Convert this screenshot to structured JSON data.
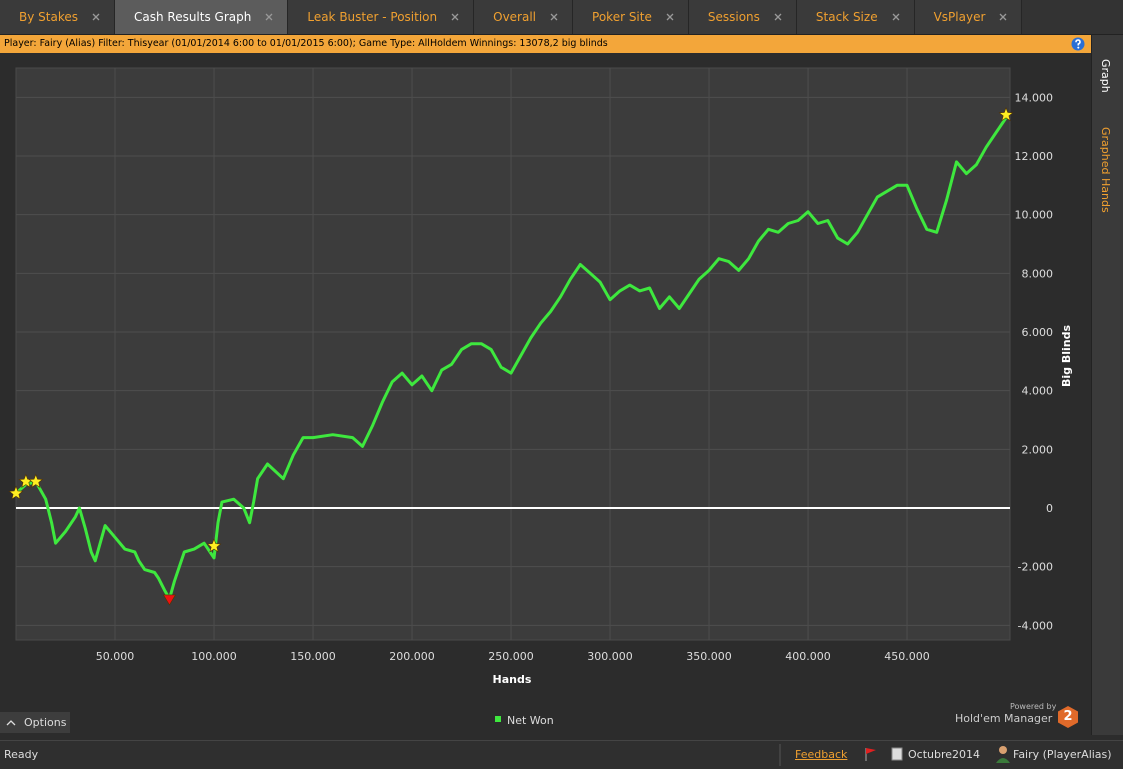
{
  "tabs": [
    "By Stakes",
    "Cash Results Graph",
    "Leak Buster - Position",
    "Overall",
    "Poker Site",
    "Sessions",
    "Stack Size",
    "VsPlayer"
  ],
  "info_bar": "Player: Fairy (Alias) Filter: Thisyear (01/01/2014 6:00 to 01/01/2015 6:00); Game Type: AllHoldem Winnings: 13078,2 big blinds",
  "side_tabs": [
    "Graph",
    "Graphed Hands"
  ],
  "chart_data": {
    "type": "line",
    "x_label": "Hands",
    "y_label": "Big Blinds",
    "grid": true,
    "xlim": [
      0,
      502000
    ],
    "ylim": [
      -4500,
      15000
    ],
    "xticks": [
      {
        "value": 50000,
        "label": "50.000"
      },
      {
        "value": 100000,
        "label": "100.000"
      },
      {
        "value": 150000,
        "label": "150.000"
      },
      {
        "value": 200000,
        "label": "200.000"
      },
      {
        "value": 250000,
        "label": "250.000"
      },
      {
        "value": 300000,
        "label": "300.000"
      },
      {
        "value": 350000,
        "label": "350.000"
      },
      {
        "value": 400000,
        "label": "400.000"
      },
      {
        "value": 450000,
        "label": "450.000"
      }
    ],
    "yticks": [
      {
        "value": -4000,
        "label": "-4.000"
      },
      {
        "value": -2000,
        "label": "-2.000"
      },
      0,
      {
        "value": 2000,
        "label": "2.000"
      },
      {
        "value": 4000,
        "label": "4.000"
      },
      {
        "value": 6000,
        "label": "6.000"
      },
      {
        "value": 8000,
        "label": "8.000"
      },
      {
        "value": 10000,
        "label": "10.000"
      },
      {
        "value": 12000,
        "label": "12.000"
      },
      {
        "value": 14000,
        "label": "14.000"
      }
    ],
    "x": [
      0,
      5000,
      10000,
      15000,
      18000,
      20000,
      25000,
      30000,
      32000,
      35000,
      38000,
      40000,
      45000,
      50000,
      55000,
      60000,
      62000,
      65000,
      70000,
      72000,
      75000,
      77500,
      80000,
      85000,
      90000,
      95000,
      100000,
      102000,
      104000,
      110000,
      115000,
      118000,
      120000,
      122000,
      127000,
      135000,
      140000,
      145000,
      150000,
      160000,
      170000,
      175000,
      180000,
      185000,
      190000,
      195000,
      200000,
      205000,
      210000,
      215000,
      220000,
      225000,
      230000,
      235000,
      240000,
      245000,
      250000,
      255000,
      260000,
      265000,
      270000,
      275000,
      280000,
      285000,
      290000,
      295000,
      300000,
      305000,
      310000,
      315000,
      320000,
      325000,
      330000,
      335000,
      340000,
      345000,
      350000,
      355000,
      360000,
      365000,
      370000,
      375000,
      380000,
      385000,
      390000,
      395000,
      400000,
      405000,
      410000,
      415000,
      420000,
      425000,
      430000,
      435000,
      440000,
      445000,
      450000,
      455000,
      460000,
      465000,
      470000,
      475000,
      480000,
      485000,
      490000,
      495000,
      500000
    ],
    "series": [
      {
        "name": "Net Won",
        "color": "#3ee83e",
        "values": [
          500,
          800,
          900,
          300,
          -500,
          -1200,
          -800,
          -300,
          0,
          -700,
          -1500,
          -1800,
          -600,
          -1000,
          -1400,
          -1500,
          -1800,
          -2100,
          -2200,
          -2400,
          -2800,
          -3100,
          -2500,
          -1500,
          -1400,
          -1200,
          -1700,
          -500,
          200,
          300,
          0,
          -500,
          200,
          1000,
          1500,
          1000,
          1800,
          2400,
          2400,
          2500,
          2400,
          2100,
          2800,
          3600,
          4300,
          4600,
          4200,
          4500,
          4000,
          4700,
          4900,
          5400,
          5600,
          5600,
          5400,
          4800,
          4600,
          5200,
          5800,
          6300,
          6700,
          7200,
          7800,
          8300,
          8000,
          7700,
          7100,
          7400,
          7600,
          7400,
          7500,
          6800,
          7200,
          6800,
          7300,
          7800,
          8100,
          8500,
          8400,
          8100,
          8500,
          9100,
          9500,
          9400,
          9700,
          9800,
          10100,
          9700,
          9800,
          9200,
          9000,
          9400,
          10000,
          10600,
          10800,
          11000,
          11000,
          10200,
          9500,
          9400,
          10500,
          11800,
          11400,
          11700,
          12300,
          12800,
          13300
        ]
      }
    ],
    "markers": [
      {
        "x": 0,
        "y": 500,
        "shape": "star",
        "color": "#ffee22"
      },
      {
        "x": 5000,
        "y": 900,
        "shape": "star",
        "color": "#ffee22"
      },
      {
        "x": 10000,
        "y": 900,
        "shape": "star",
        "color": "#ffee22"
      },
      {
        "x": 100000,
        "y": -1300,
        "shape": "star",
        "color": "#ffee22"
      },
      {
        "x": 500000,
        "y": 13400,
        "shape": "star",
        "color": "#ffee22"
      },
      {
        "x": 77500,
        "y": -3100,
        "shape": "triangle-down",
        "color": "#ee1111"
      }
    ]
  },
  "options_button": "Options",
  "powered_by": "Powered by",
  "brand": "Hold'em Manager",
  "brand_logo": "2",
  "status_bar": {
    "status": "Ready",
    "feedback": "Feedback",
    "period": "Octubre2014",
    "player": "Fairy (PlayerAlias)"
  }
}
